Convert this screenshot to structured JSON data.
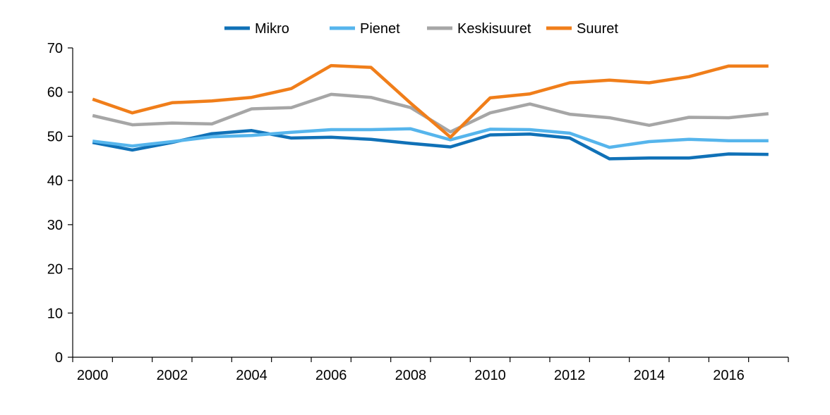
{
  "chart_data": {
    "type": "line",
    "title": "",
    "xlabel": "",
    "ylabel": "",
    "x": [
      2000,
      2001,
      2002,
      2003,
      2004,
      2005,
      2006,
      2007,
      2008,
      2009,
      2010,
      2011,
      2012,
      2013,
      2014,
      2015,
      2016,
      2017
    ],
    "x_tick_labels": [
      "2000",
      "2002",
      "2004",
      "2006",
      "2008",
      "2010",
      "2012",
      "2014",
      "2016"
    ],
    "y_tick_labels": [
      "0",
      "10",
      "20",
      "30",
      "40",
      "50",
      "60",
      "70"
    ],
    "ylim": [
      0,
      70
    ],
    "grid": false,
    "legend_position": "top",
    "series": [
      {
        "name": "Mikro",
        "color": "#1071b7",
        "values": [
          48.6,
          46.9,
          48.6,
          50.6,
          51.3,
          49.6,
          49.8,
          49.3,
          48.4,
          47.6,
          50.3,
          50.5,
          49.6,
          44.9,
          45.1,
          45.1,
          46.0,
          45.9
        ]
      },
      {
        "name": "Pienet",
        "color": "#56b5ec",
        "values": [
          48.9,
          47.8,
          48.8,
          49.9,
          50.2,
          50.9,
          51.5,
          51.5,
          51.7,
          49.2,
          51.6,
          51.5,
          50.7,
          47.5,
          48.8,
          49.3,
          49.0,
          49.0
        ]
      },
      {
        "name": "Keskisuuret",
        "color": "#a6a6a6",
        "values": [
          54.7,
          52.6,
          53.0,
          52.8,
          56.2,
          56.5,
          59.5,
          58.8,
          56.5,
          51.0,
          55.3,
          57.3,
          55.0,
          54.2,
          52.5,
          54.3,
          54.2,
          55.1
        ]
      },
      {
        "name": "Suuret",
        "color": "#f07e1a",
        "values": [
          58.4,
          55.3,
          57.6,
          58.0,
          58.8,
          60.8,
          66.0,
          65.6,
          57.5,
          49.8,
          58.7,
          59.6,
          62.1,
          62.7,
          62.1,
          63.5,
          65.9,
          65.9
        ]
      }
    ]
  }
}
